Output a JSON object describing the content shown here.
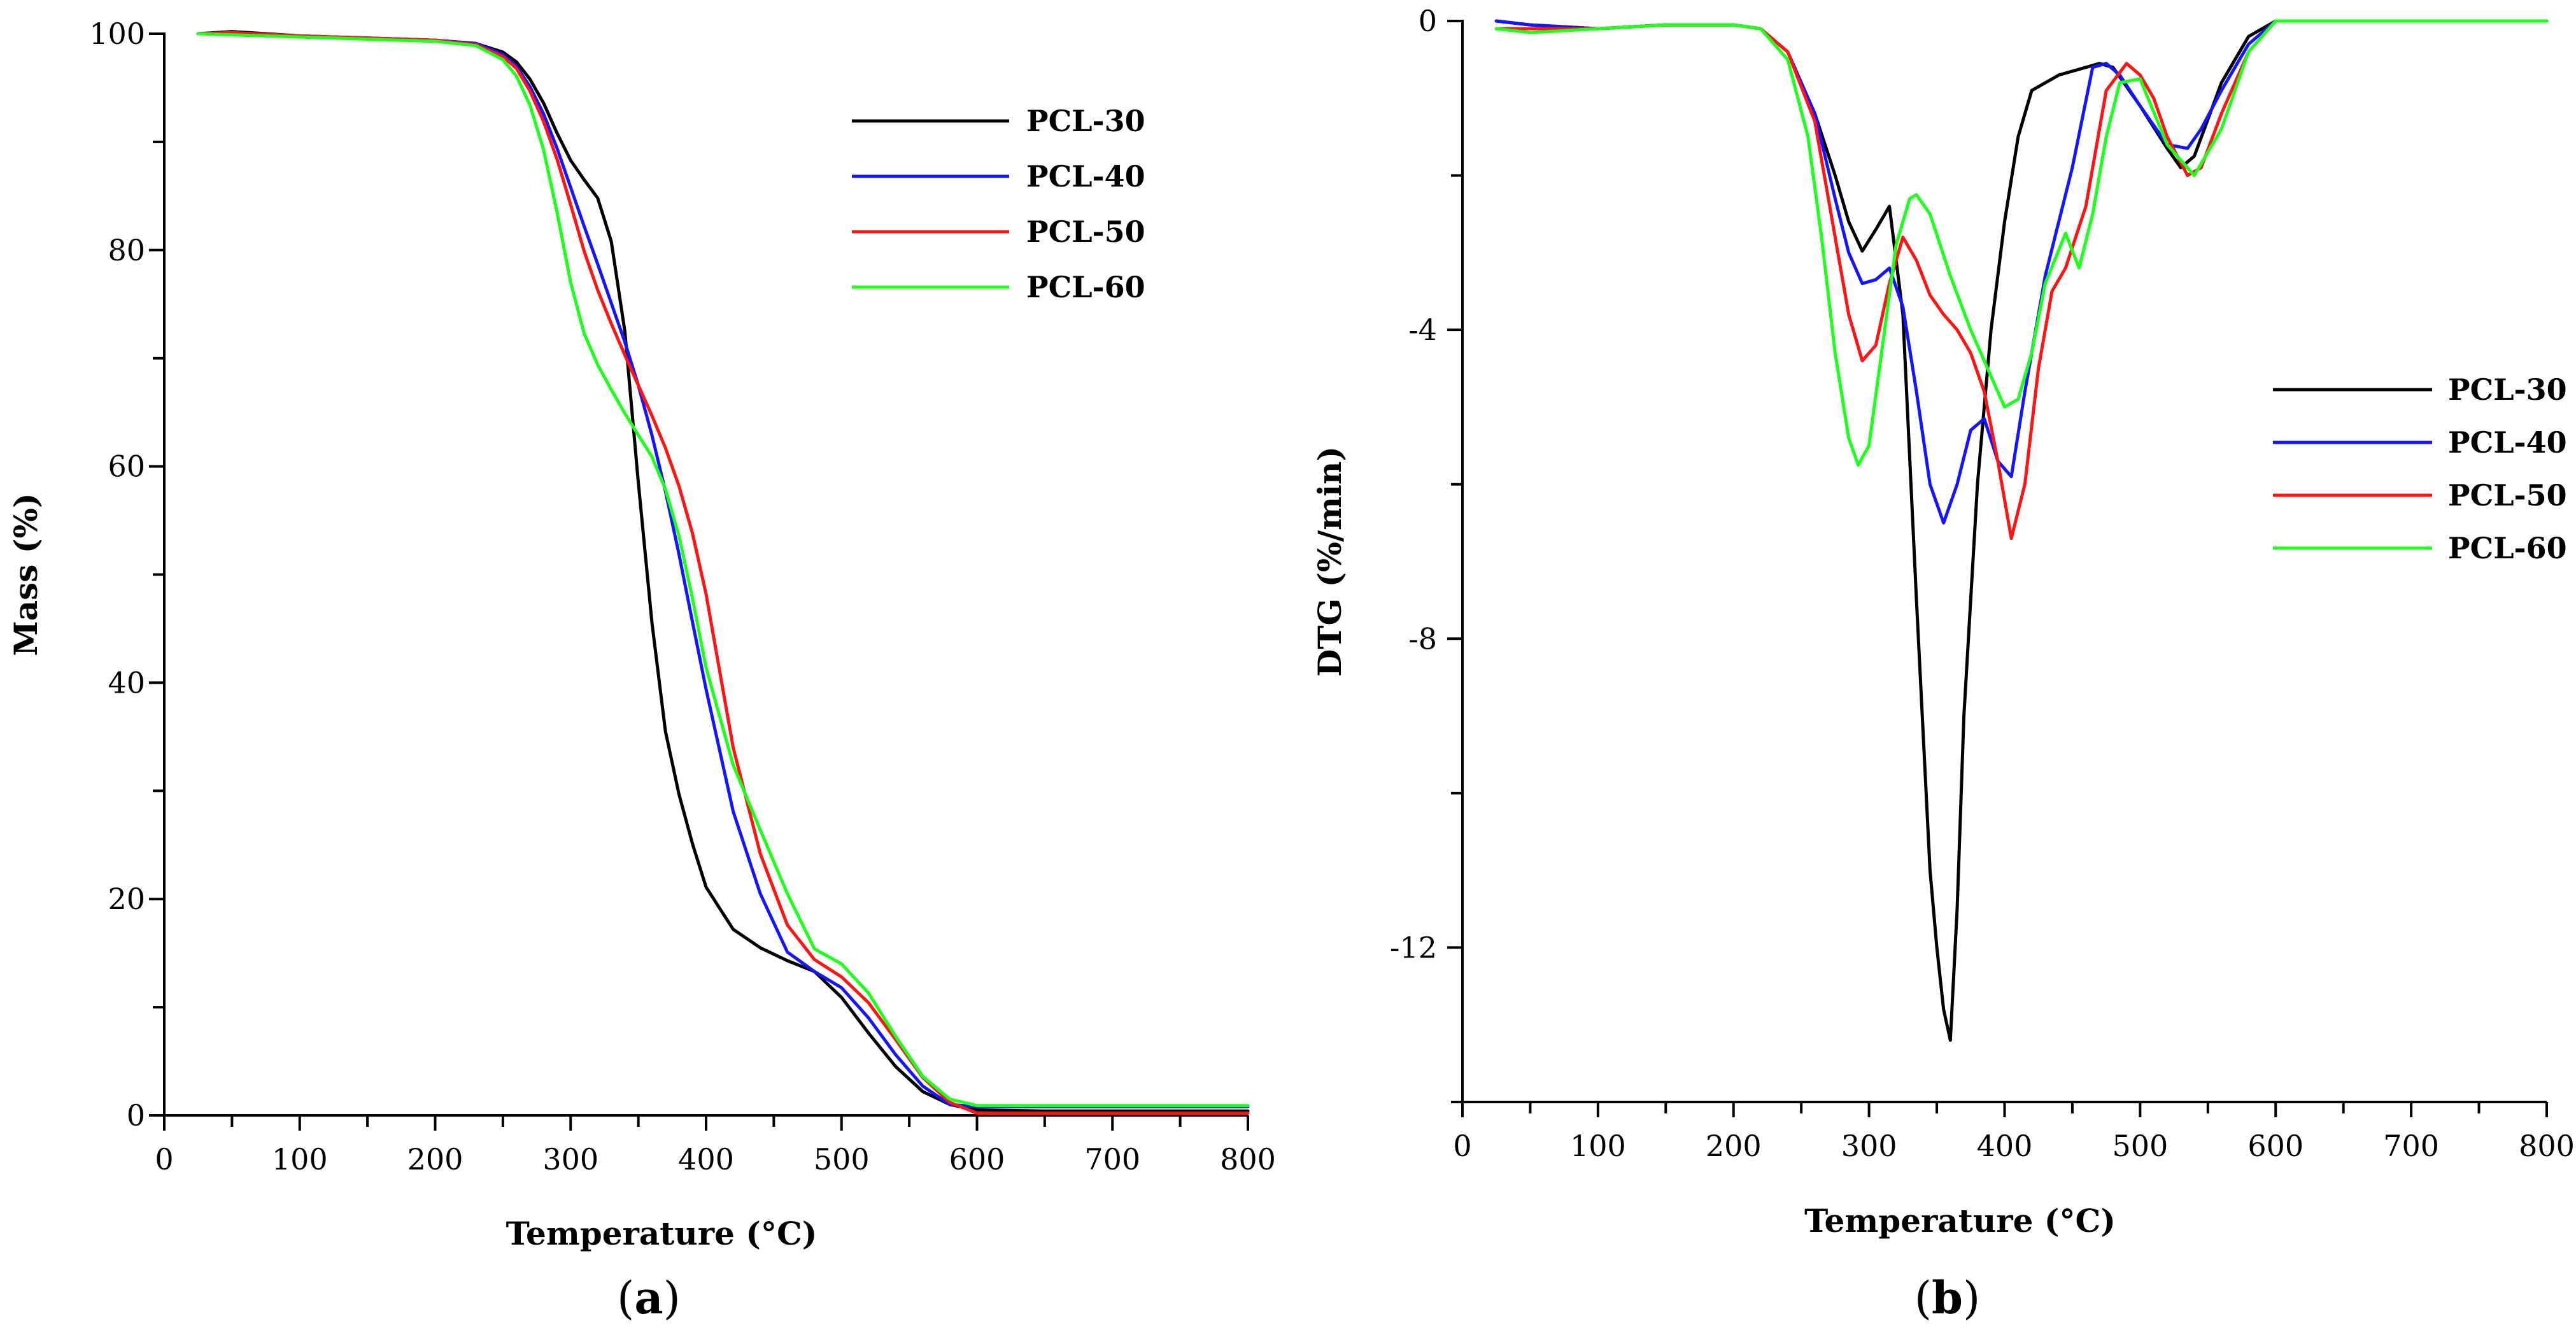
{
  "chart_data": [
    {
      "type": "line",
      "panel": "(a)",
      "panel_letter": "a",
      "title": "",
      "xlabel": "Temperature (°C)",
      "ylabel": "Mass (%)",
      "xlim": [
        0,
        800
      ],
      "ylim": [
        0,
        100
      ],
      "xticks": [
        0,
        100,
        200,
        300,
        400,
        500,
        600,
        700,
        800
      ],
      "yticks": [
        0,
        20,
        40,
        60,
        80,
        100
      ],
      "legend_position": "top-right",
      "series": [
        {
          "name": "PCL-30",
          "color": "#000000",
          "x": [
            25,
            50,
            100,
            150,
            200,
            230,
            250,
            260,
            270,
            280,
            290,
            300,
            310,
            320,
            330,
            340,
            350,
            360,
            370,
            380,
            390,
            400,
            420,
            440,
            460,
            480,
            500,
            520,
            540,
            560,
            580,
            600,
            650,
            700,
            800
          ],
          "y": [
            100,
            100.2,
            99.8,
            99.6,
            99.4,
            99.1,
            98.3,
            97.4,
            95.8,
            93.6,
            90.8,
            88.3,
            86.5,
            84.8,
            80.8,
            72.5,
            58.5,
            45.6,
            35.5,
            29.7,
            25.1,
            21.1,
            17.2,
            15.5,
            14.3,
            13.3,
            10.9,
            7.6,
            4.5,
            2.2,
            1.0,
            0.5,
            0.4,
            0.4,
            0.4
          ]
        },
        {
          "name": "PCL-40",
          "color": "#1414ff",
          "x": [
            25,
            50,
            100,
            150,
            200,
            230,
            250,
            260,
            270,
            280,
            290,
            300,
            310,
            320,
            330,
            340,
            350,
            360,
            370,
            380,
            390,
            400,
            420,
            440,
            460,
            480,
            500,
            520,
            540,
            560,
            580,
            600,
            650,
            700,
            800
          ],
          "y": [
            100,
            100.1,
            99.8,
            99.6,
            99.4,
            99.1,
            98.1,
            97.0,
            95.1,
            92.6,
            89.4,
            85.8,
            82.2,
            78.7,
            75.1,
            71.5,
            67.5,
            62.9,
            57.7,
            51.9,
            45.6,
            39.4,
            28.1,
            20.5,
            15.1,
            13.3,
            11.8,
            9.0,
            5.6,
            2.7,
            1.0,
            0.8,
            0.8,
            0.8,
            0.8
          ]
        },
        {
          "name": "PCL-50",
          "color": "#ff1414",
          "x": [
            25,
            50,
            100,
            150,
            200,
            230,
            250,
            260,
            270,
            280,
            290,
            300,
            310,
            320,
            330,
            340,
            350,
            360,
            370,
            380,
            390,
            400,
            420,
            440,
            460,
            480,
            500,
            520,
            540,
            560,
            580,
            600,
            650,
            700,
            800
          ],
          "y": [
            100,
            100.1,
            99.8,
            99.6,
            99.4,
            99.0,
            97.9,
            96.8,
            94.7,
            91.9,
            88.4,
            84.2,
            79.9,
            76.3,
            73.2,
            70.3,
            67.5,
            64.7,
            61.7,
            58.2,
            53.8,
            48.2,
            34.0,
            24.2,
            17.6,
            14.4,
            12.8,
            10.4,
            7.0,
            3.5,
            1.2,
            0.2,
            0.2,
            0.2,
            0.2
          ]
        },
        {
          "name": "PCL-60",
          "color": "#1eff1e",
          "x": [
            25,
            50,
            100,
            150,
            200,
            230,
            250,
            260,
            270,
            280,
            290,
            300,
            310,
            320,
            330,
            340,
            350,
            360,
            370,
            380,
            390,
            400,
            420,
            440,
            460,
            480,
            500,
            520,
            540,
            560,
            580,
            600,
            650,
            700,
            800
          ],
          "y": [
            100,
            99.9,
            99.7,
            99.5,
            99.3,
            98.9,
            97.6,
            96.1,
            93.4,
            89.3,
            83.5,
            77.0,
            72.3,
            69.4,
            67.1,
            64.9,
            62.9,
            60.9,
            57.9,
            53.6,
            47.8,
            41.4,
            32.4,
            26.4,
            20.5,
            15.4,
            14.0,
            11.3,
            7.3,
            3.6,
            1.5,
            0.9,
            0.9,
            0.9,
            0.9
          ]
        }
      ]
    },
    {
      "type": "line",
      "panel": "(b)",
      "panel_letter": "b",
      "title": "",
      "xlabel": "Temperature (°C)",
      "ylabel": "DTG (%/min)",
      "xlim": [
        0,
        800
      ],
      "ylim": [
        -14,
        0
      ],
      "xticks": [
        0,
        100,
        200,
        300,
        400,
        500,
        600,
        700,
        800
      ],
      "yticks": [
        0,
        -4,
        -8,
        -12
      ],
      "legend_position": "center-right",
      "series": [
        {
          "name": "PCL-30",
          "color": "#000000",
          "x": [
            25,
            50,
            100,
            150,
            200,
            220,
            240,
            260,
            275,
            285,
            295,
            305,
            315,
            325,
            335,
            345,
            350,
            355,
            360,
            365,
            370,
            380,
            390,
            400,
            410,
            420,
            440,
            460,
            470,
            480,
            500,
            520,
            530,
            540,
            560,
            580,
            600,
            700,
            800
          ],
          "y": [
            0,
            -0.05,
            -0.1,
            -0.05,
            -0.05,
            -0.1,
            -0.4,
            -1.2,
            -2.0,
            -2.6,
            -2.98,
            -2.7,
            -2.4,
            -3.8,
            -7.5,
            -11.0,
            -12.0,
            -12.8,
            -13.2,
            -11.5,
            -9.0,
            -6.0,
            -4.0,
            -2.6,
            -1.5,
            -0.9,
            -0.7,
            -0.6,
            -0.55,
            -0.6,
            -1.1,
            -1.65,
            -1.9,
            -1.75,
            -0.8,
            -0.2,
            0,
            0,
            0
          ]
        },
        {
          "name": "PCL-40",
          "color": "#1414ff",
          "x": [
            25,
            50,
            100,
            150,
            200,
            220,
            240,
            260,
            275,
            285,
            295,
            305,
            315,
            325,
            335,
            345,
            355,
            365,
            375,
            385,
            395,
            405,
            415,
            430,
            450,
            465,
            475,
            485,
            500,
            520,
            535,
            545,
            560,
            580,
            600,
            700,
            800
          ],
          "y": [
            0,
            -0.05,
            -0.1,
            -0.05,
            -0.05,
            -0.1,
            -0.4,
            -1.2,
            -2.3,
            -3.0,
            -3.4,
            -3.35,
            -3.2,
            -3.7,
            -4.8,
            -6.0,
            -6.5,
            -6.0,
            -5.3,
            -5.15,
            -5.7,
            -5.9,
            -4.8,
            -3.3,
            -1.9,
            -0.6,
            -0.55,
            -0.7,
            -1.1,
            -1.6,
            -1.65,
            -1.4,
            -0.9,
            -0.3,
            0,
            0,
            0
          ]
        },
        {
          "name": "PCL-50",
          "color": "#ff1414",
          "x": [
            25,
            50,
            100,
            150,
            200,
            220,
            240,
            260,
            275,
            285,
            295,
            305,
            315,
            325,
            335,
            345,
            355,
            365,
            375,
            385,
            395,
            405,
            415,
            425,
            435,
            445,
            460,
            475,
            490,
            500,
            510,
            520,
            535,
            545,
            560,
            580,
            600,
            700,
            800
          ],
          "y": [
            -0.1,
            -0.1,
            -0.1,
            -0.05,
            -0.05,
            -0.1,
            -0.4,
            -1.3,
            -2.8,
            -3.8,
            -4.4,
            -4.2,
            -3.4,
            -2.8,
            -3.1,
            -3.55,
            -3.8,
            -4.0,
            -4.3,
            -4.8,
            -5.7,
            -6.7,
            -6.0,
            -4.5,
            -3.5,
            -3.2,
            -2.4,
            -0.9,
            -0.55,
            -0.7,
            -1.0,
            -1.5,
            -2.0,
            -1.9,
            -1.2,
            -0.4,
            0,
            0,
            0
          ]
        },
        {
          "name": "PCL-60",
          "color": "#1eff1e",
          "x": [
            25,
            50,
            100,
            150,
            200,
            220,
            240,
            255,
            265,
            275,
            285,
            292,
            300,
            310,
            320,
            330,
            335,
            345,
            360,
            375,
            390,
            400,
            410,
            420,
            430,
            445,
            455,
            465,
            475,
            485,
            500,
            520,
            540,
            560,
            580,
            600,
            700,
            800
          ],
          "y": [
            -0.1,
            -0.15,
            -0.1,
            -0.05,
            -0.05,
            -0.1,
            -0.5,
            -1.5,
            -2.8,
            -4.3,
            -5.4,
            -5.75,
            -5.5,
            -4.2,
            -2.9,
            -2.3,
            -2.25,
            -2.5,
            -3.3,
            -4.0,
            -4.6,
            -5.0,
            -4.9,
            -4.3,
            -3.4,
            -2.75,
            -3.2,
            -2.5,
            -1.5,
            -0.8,
            -0.75,
            -1.6,
            -2.0,
            -1.4,
            -0.4,
            0,
            0,
            0
          ]
        }
      ]
    }
  ]
}
